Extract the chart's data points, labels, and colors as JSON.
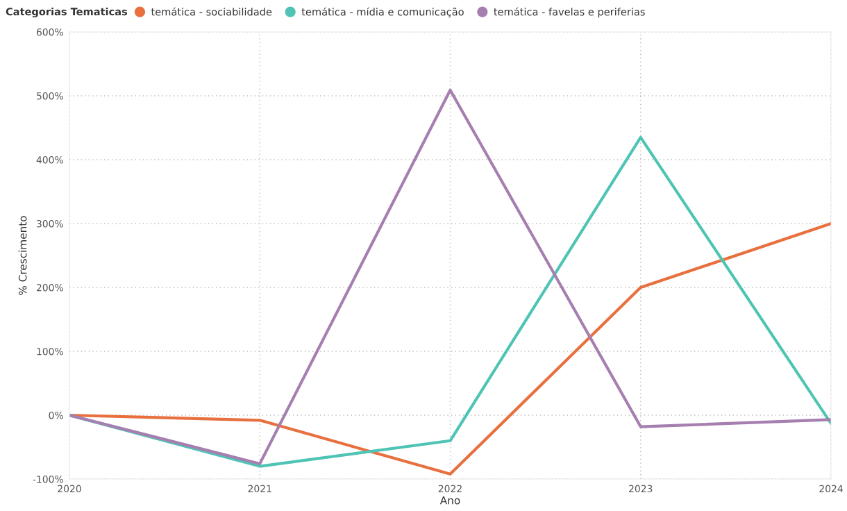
{
  "chart_data": {
    "type": "line",
    "xlabel": "Ano",
    "ylabel": "% Crescimento",
    "legend_title": "Categorias Tematicas",
    "x": [
      2020,
      2021,
      2022,
      2023,
      2024
    ],
    "series": [
      {
        "name": "temática - sociabilidade",
        "color": "#e8703f",
        "values": [
          0,
          -8,
          -92,
          200,
          300
        ]
      },
      {
        "name": "temática - mídia e comunicação",
        "color": "#4fc4b5",
        "values": [
          0,
          -80,
          -40,
          435,
          -13
        ]
      },
      {
        "name": "temática - favelas e periferias",
        "color": "#a67fb0",
        "values": [
          0,
          -76,
          509,
          -18,
          -7
        ]
      }
    ],
    "xlim": [
      2020,
      2024
    ],
    "xticks": [
      2020,
      2021,
      2022,
      2023,
      2024
    ],
    "ylim": [
      -100,
      600
    ],
    "yticks": [
      {
        "value": -100,
        "label": "-100%"
      },
      {
        "value": 0,
        "label": "0%"
      },
      {
        "value": 100,
        "label": "100%"
      },
      {
        "value": 200,
        "label": "200%"
      },
      {
        "value": 300,
        "label": "300%"
      },
      {
        "value": 400,
        "label": "400%"
      },
      {
        "value": 500,
        "label": "500%"
      },
      {
        "value": 600,
        "label": "600%"
      }
    ],
    "grid": true,
    "legend": "top left",
    "line_style": "solid"
  }
}
